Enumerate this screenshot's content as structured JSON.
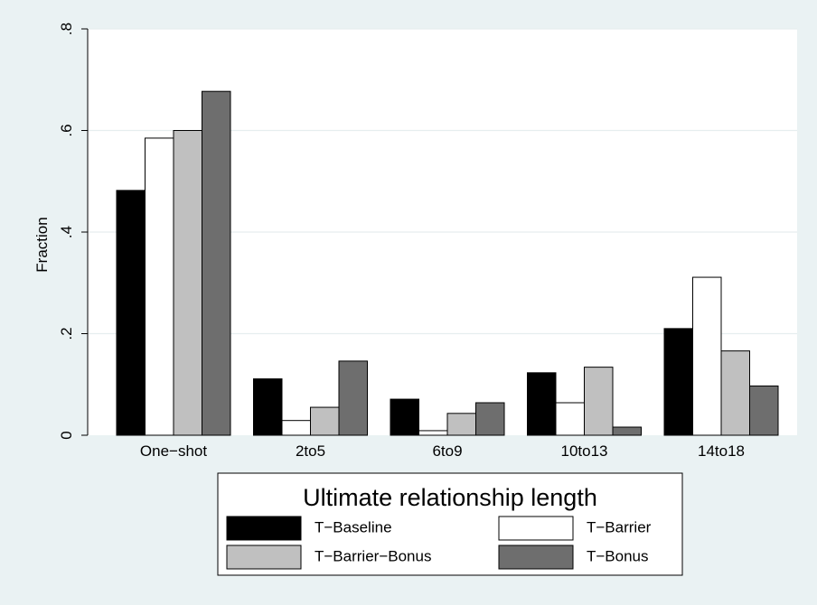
{
  "chart_data": {
    "type": "bar",
    "title": "",
    "xlabel": "",
    "ylabel": "Fraction",
    "ylim": [
      0,
      0.8
    ],
    "yticks": [
      {
        "value": 0,
        "label": "0"
      },
      {
        "value": 0.2,
        "label": ".2"
      },
      {
        "value": 0.4,
        "label": ".4"
      },
      {
        "value": 0.6,
        "label": ".6"
      },
      {
        "value": 0.8,
        "label": ".8"
      }
    ],
    "grid": true,
    "categories": [
      "One−shot",
      "2to5",
      "6to9",
      "10to13",
      "14to18"
    ],
    "series": [
      {
        "name": "T−Baseline",
        "color": "#000000",
        "values": [
          0.482,
          0.111,
          0.071,
          0.123,
          0.21
        ]
      },
      {
        "name": "T−Barrier",
        "color": "#ffffff",
        "values": [
          0.585,
          0.029,
          0.009,
          0.064,
          0.311
        ]
      },
      {
        "name": "T−Barrier−Bonus",
        "color": "#c0c0c0",
        "values": [
          0.6,
          0.055,
          0.043,
          0.134,
          0.166
        ]
      },
      {
        "name": "T−Bonus",
        "color": "#6e6e6e",
        "values": [
          0.677,
          0.146,
          0.064,
          0.016,
          0.097
        ]
      }
    ],
    "legend": {
      "title": "Ultimate relationship length",
      "placement": "bottom"
    }
  }
}
